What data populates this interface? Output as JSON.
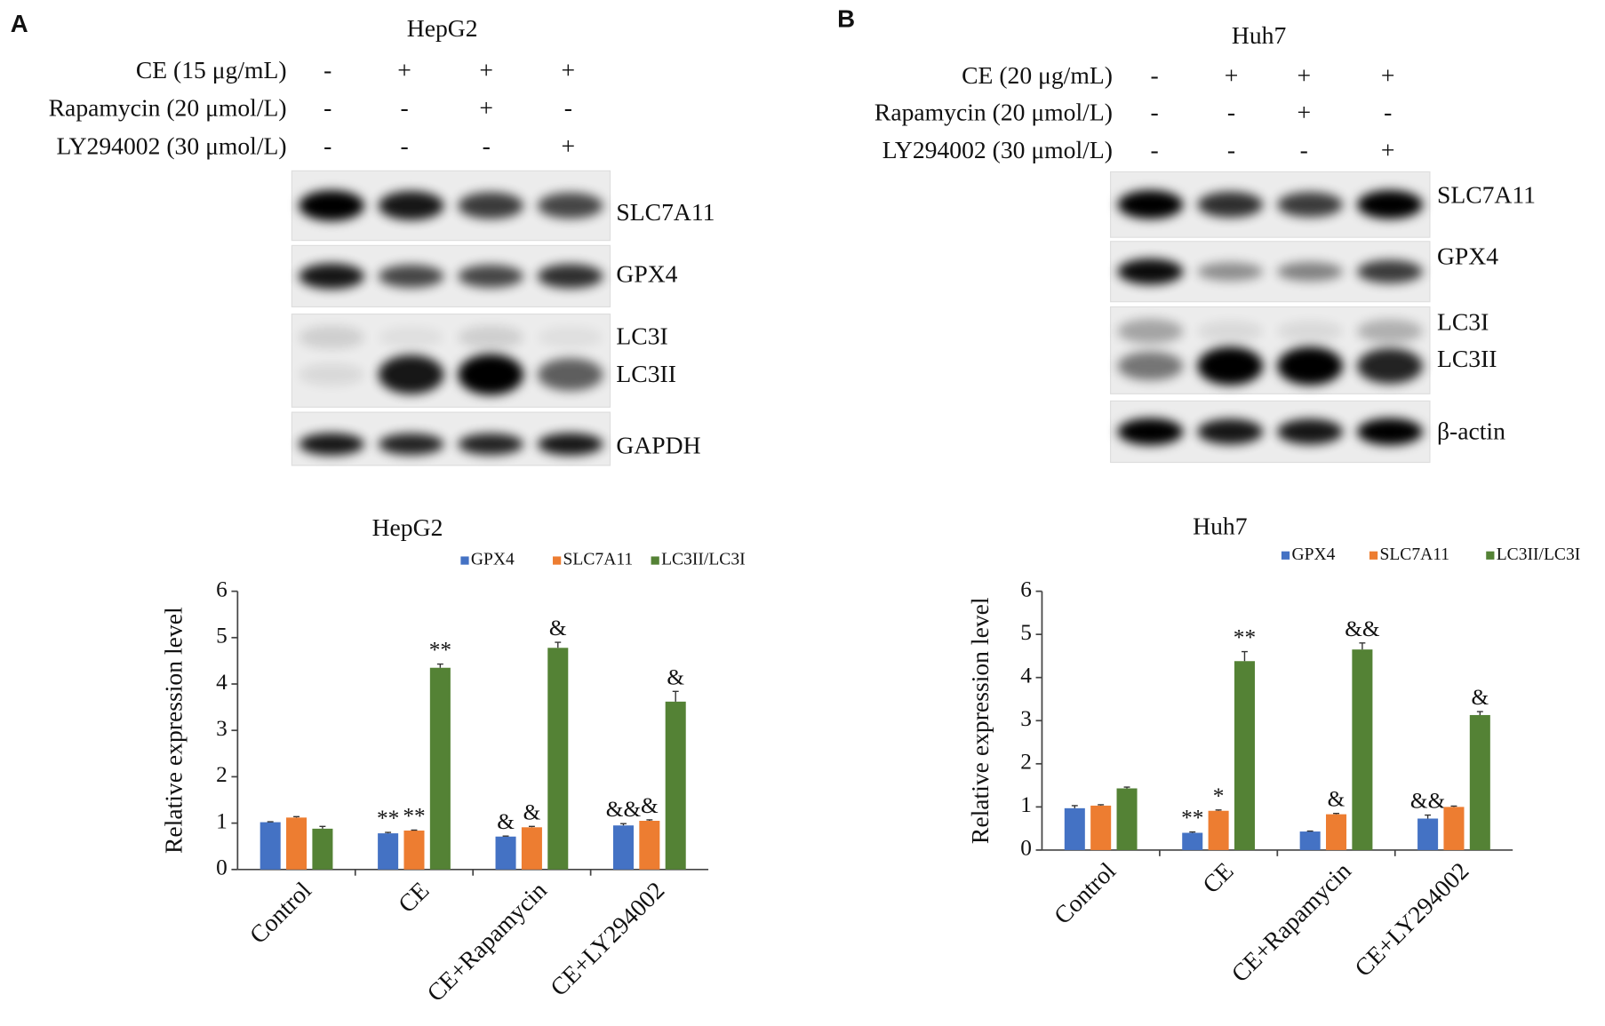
{
  "blots": [
    {
      "panel": "A",
      "cell_line": "HepG2",
      "treatments": [
        {
          "label": "CE (15 μg/mL)",
          "signs": [
            "-",
            "+",
            "+",
            "+"
          ]
        },
        {
          "label": "Rapamycin (20 μmol/L)",
          "signs": [
            "-",
            "-",
            "+",
            "-"
          ]
        },
        {
          "label": "LY294002 (30 μmol/L)",
          "signs": [
            "-",
            "-",
            "-",
            "+"
          ]
        }
      ],
      "bands": [
        [
          "SLC7A11"
        ],
        [
          "GPX4"
        ],
        [
          "LC3I",
          "LC3II"
        ],
        [
          "GAPDH"
        ]
      ]
    },
    {
      "panel": "B",
      "cell_line": "Huh7",
      "treatments": [
        {
          "label": "CE (20 μg/mL)",
          "signs": [
            "-",
            "+",
            "+",
            "+"
          ]
        },
        {
          "label": "Rapamycin (20 μmol/L)",
          "signs": [
            "-",
            "-",
            "+",
            "-"
          ]
        },
        {
          "label": "LY294002 (30 μmol/L)",
          "signs": [
            "-",
            "-",
            "-",
            "+"
          ]
        }
      ],
      "bands": [
        [
          "SLC7A11"
        ],
        [
          "GPX4"
        ],
        [
          "LC3I",
          "LC3II"
        ],
        [
          "β-actin"
        ]
      ]
    }
  ],
  "chart_data": [
    {
      "type": "bar",
      "title": "HepG2",
      "ylabel": "Relative expression level",
      "categories": [
        "Control",
        "CE",
        "CE+Rapamycin",
        "CE+LY294002"
      ],
      "series": [
        {
          "name": "GPX4",
          "color": "#4472c4",
          "values": [
            1.02,
            0.78,
            0.71,
            0.95
          ],
          "errors": [
            0.01,
            0.02,
            0.01,
            0.04
          ],
          "annotations": [
            null,
            "**",
            "&",
            "&&"
          ]
        },
        {
          "name": "SLC7A11",
          "color": "#ed7d31",
          "values": [
            1.12,
            0.84,
            0.91,
            1.05
          ],
          "errors": [
            0.02,
            0.01,
            0.02,
            0.02
          ],
          "annotations": [
            null,
            "**",
            "&",
            "&"
          ]
        },
        {
          "name": "LC3II/LC3I",
          "color": "#548235",
          "values": [
            0.88,
            4.35,
            4.78,
            3.62
          ],
          "errors": [
            0.05,
            0.08,
            0.12,
            0.22
          ],
          "annotations": [
            null,
            "**",
            "&",
            "&"
          ]
        }
      ],
      "ylim": [
        0,
        6
      ],
      "yticks": [
        0,
        1,
        2,
        3,
        4,
        5,
        6
      ]
    },
    {
      "type": "bar",
      "title": "Huh7",
      "ylabel": "Relative expression level",
      "categories": [
        "Control",
        "CE",
        "CE+Rapamycin",
        "CE+LY294002"
      ],
      "series": [
        {
          "name": "GPX4",
          "color": "#4472c4",
          "values": [
            0.97,
            0.4,
            0.43,
            0.73
          ],
          "errors": [
            0.06,
            0.02,
            0.01,
            0.08
          ],
          "annotations": [
            null,
            "**",
            null,
            "&&"
          ]
        },
        {
          "name": "SLC7A11",
          "color": "#ed7d31",
          "values": [
            1.03,
            0.91,
            0.83,
            1.0
          ],
          "errors": [
            0.02,
            0.02,
            0.02,
            0.02
          ],
          "annotations": [
            null,
            "*",
            "&",
            null
          ]
        },
        {
          "name": "LC3II/LC3I",
          "color": "#548235",
          "values": [
            1.43,
            4.38,
            4.65,
            3.13
          ],
          "errors": [
            0.03,
            0.22,
            0.15,
            0.08
          ],
          "annotations": [
            null,
            "**",
            "&&",
            "&"
          ]
        }
      ],
      "ylim": [
        0,
        6
      ],
      "yticks": [
        0,
        1,
        2,
        3,
        4,
        5,
        6
      ]
    }
  ]
}
